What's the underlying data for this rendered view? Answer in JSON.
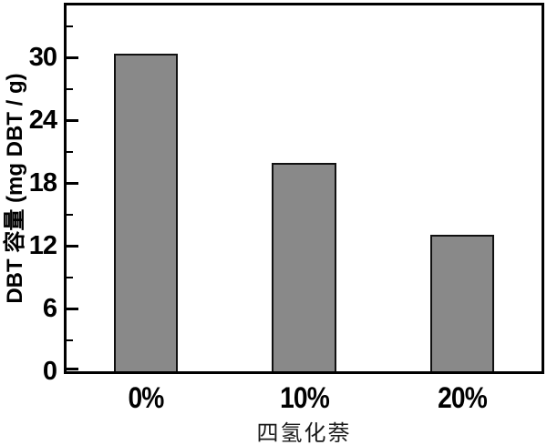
{
  "chart_data": {
    "type": "bar",
    "categories": [
      "0%",
      "10%",
      "20%"
    ],
    "values": [
      30.4,
      19.9,
      13.1
    ],
    "title": "",
    "xlabel": "四氢化萘",
    "ylabel": "DBT 容量 (mg DBT / g)",
    "ylim": [
      0,
      35
    ],
    "yticks": [
      0,
      6,
      12,
      18,
      24,
      30
    ],
    "yticks_minor": [
      3,
      9,
      15,
      21,
      27,
      33
    ],
    "grid": false,
    "legend": "none",
    "colors": {
      "bar_fill": "#898989",
      "bar_edge": "#111111",
      "axis": "#000000",
      "background": "#ffffff"
    },
    "layout": {
      "bar_centers_frac": [
        0.1667,
        0.5,
        0.8333
      ],
      "bar_width_frac": 0.135,
      "tick_direction": "in"
    }
  }
}
